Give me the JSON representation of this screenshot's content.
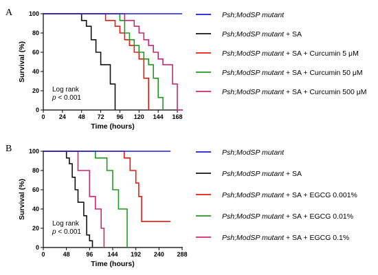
{
  "chart_data": [
    {
      "type": "line",
      "panel_label": "A",
      "xlabel": "Time (hours)",
      "ylabel": "Survival (%)",
      "xlim": [
        0,
        174
      ],
      "ylim": [
        0,
        100
      ],
      "x_ticks": [
        0,
        24,
        48,
        72,
        96,
        120,
        144,
        168
      ],
      "y_ticks": [
        0,
        20,
        40,
        60,
        80,
        100
      ],
      "annotation": {
        "line1": "Log rank",
        "p_italic": "p",
        "p_rest": " < 0.001"
      },
      "series": [
        {
          "name_italic": "Psh;ModSP mutant",
          "name_rest": "",
          "color": "#1a1adb",
          "x": [
            0,
            174
          ],
          "y": [
            100,
            100
          ]
        },
        {
          "name_italic": "Psh;ModSP mutant",
          "name_rest": " + SA",
          "color": "#111111",
          "x": [
            0,
            48,
            48,
            54,
            54,
            60,
            60,
            66,
            66,
            72,
            72,
            84,
            84,
            90,
            90
          ],
          "y": [
            100,
            100,
            93,
            93,
            87,
            87,
            73,
            73,
            60,
            60,
            47,
            47,
            27,
            27,
            0
          ]
        },
        {
          "name_italic": "Psh;ModSP mutant",
          "name_rest": " + SA + Curcumin 5 μM",
          "color": "#e8190f",
          "x": [
            0,
            78,
            78,
            90,
            90,
            96,
            96,
            102,
            102,
            108,
            108,
            114,
            114,
            120,
            120,
            126,
            126,
            132,
            132
          ],
          "y": [
            100,
            100,
            93,
            93,
            87,
            87,
            80,
            80,
            73,
            73,
            67,
            67,
            60,
            60,
            53,
            53,
            33,
            33,
            0
          ]
        },
        {
          "name_italic": "Psh;ModSP mutant",
          "name_rest": " + SA + Curcumin 50 μM",
          "color": "#1e9a1e",
          "x": [
            0,
            96,
            96,
            102,
            102,
            108,
            108,
            114,
            114,
            120,
            120,
            126,
            126,
            132,
            132,
            138,
            138,
            144,
            144,
            150,
            150
          ],
          "y": [
            100,
            100,
            93,
            93,
            80,
            80,
            73,
            73,
            67,
            67,
            60,
            60,
            53,
            53,
            47,
            47,
            33,
            33,
            13,
            13,
            0
          ]
        },
        {
          "name_italic": "Psh;ModSP mutant",
          "name_rest": " + SA + Curcumin 500 μM",
          "color": "#d0246e",
          "x": [
            0,
            102,
            102,
            114,
            114,
            120,
            120,
            126,
            126,
            132,
            132,
            138,
            138,
            144,
            144,
            150,
            150,
            162,
            162,
            168,
            168,
            174
          ],
          "y": [
            100,
            100,
            93,
            93,
            87,
            87,
            80,
            80,
            73,
            73,
            67,
            67,
            60,
            60,
            53,
            53,
            47,
            47,
            27,
            27,
            0,
            0
          ]
        }
      ]
    },
    {
      "type": "line",
      "panel_label": "B",
      "xlabel": "Time (hours)",
      "ylabel": "Survival (%)",
      "xlim": [
        0,
        288
      ],
      "ylim": [
        0,
        100
      ],
      "x_ticks": [
        0,
        48,
        96,
        144,
        192,
        240,
        288
      ],
      "y_ticks": [
        0,
        20,
        40,
        60,
        80,
        100
      ],
      "annotation": {
        "line1": "Log rank",
        "p_italic": "p",
        "p_rest": " < 0.001"
      },
      "series": [
        {
          "name_italic": "Psh;ModSP mutant",
          "name_rest": "",
          "color": "#1a1adb",
          "x": [
            0,
            264
          ],
          "y": [
            100,
            100
          ]
        },
        {
          "name_italic": "Psh;ModSP mutant",
          "name_rest": " + SA",
          "color": "#111111",
          "x": [
            0,
            48,
            48,
            54,
            54,
            60,
            60,
            66,
            66,
            72,
            72,
            84,
            84,
            90,
            90,
            96,
            96,
            102,
            102
          ],
          "y": [
            100,
            100,
            93,
            93,
            87,
            87,
            73,
            73,
            60,
            60,
            47,
            47,
            33,
            33,
            13,
            13,
            7,
            7,
            0
          ]
        },
        {
          "name_italic": "Psh;ModSP mutant",
          "name_rest": " + SA + EGCG 0.001%",
          "color": "#e8190f",
          "x": [
            0,
            168,
            168,
            180,
            180,
            192,
            192,
            198,
            198,
            204,
            204,
            210,
            210,
            264
          ],
          "y": [
            100,
            100,
            93,
            93,
            80,
            80,
            67,
            67,
            53,
            53,
            27,
            27,
            27,
            27
          ]
        },
        {
          "name_italic": "Psh;ModSP mutant",
          "name_rest": " + SA + EGCG 0.01%",
          "color": "#1e9a1e",
          "x": [
            0,
            108,
            108,
            132,
            132,
            144,
            144,
            156,
            156,
            174,
            174
          ],
          "y": [
            100,
            100,
            93,
            93,
            80,
            80,
            60,
            60,
            40,
            40,
            0
          ]
        },
        {
          "name_italic": "Psh;ModSP mutant",
          "name_rest": " + SA + EGCG 0.1%",
          "color": "#d0246e",
          "x": [
            0,
            72,
            72,
            96,
            96,
            108,
            108,
            120,
            120,
            126,
            126
          ],
          "y": [
            100,
            100,
            80,
            80,
            53,
            53,
            40,
            40,
            20,
            20,
            0
          ]
        }
      ]
    }
  ]
}
